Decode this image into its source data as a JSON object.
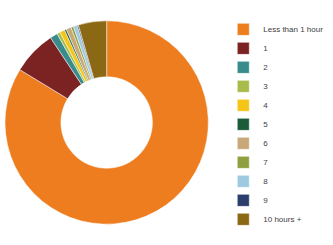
{
  "chart_data": {
    "type": "pie",
    "categories": [
      "Less than 1 hour",
      "1",
      "2",
      "3",
      "4",
      "5",
      "6",
      "7",
      "8",
      "9",
      "10 hours +"
    ],
    "values": [
      83.7,
      7,
      1.2,
      0.5,
      0.8,
      0.3,
      0.8,
      0.4,
      0.6,
      0.2,
      4.5
    ],
    "colors": [
      "#ed7d1f",
      "#7b2222",
      "#3a8c8c",
      "#a8bc4c",
      "#f5c518",
      "#1a5c3a",
      "#c8a878",
      "#8fa040",
      "#9ecae1",
      "#2c3e6b",
      "#8b6914"
    ],
    "legend": "right"
  }
}
